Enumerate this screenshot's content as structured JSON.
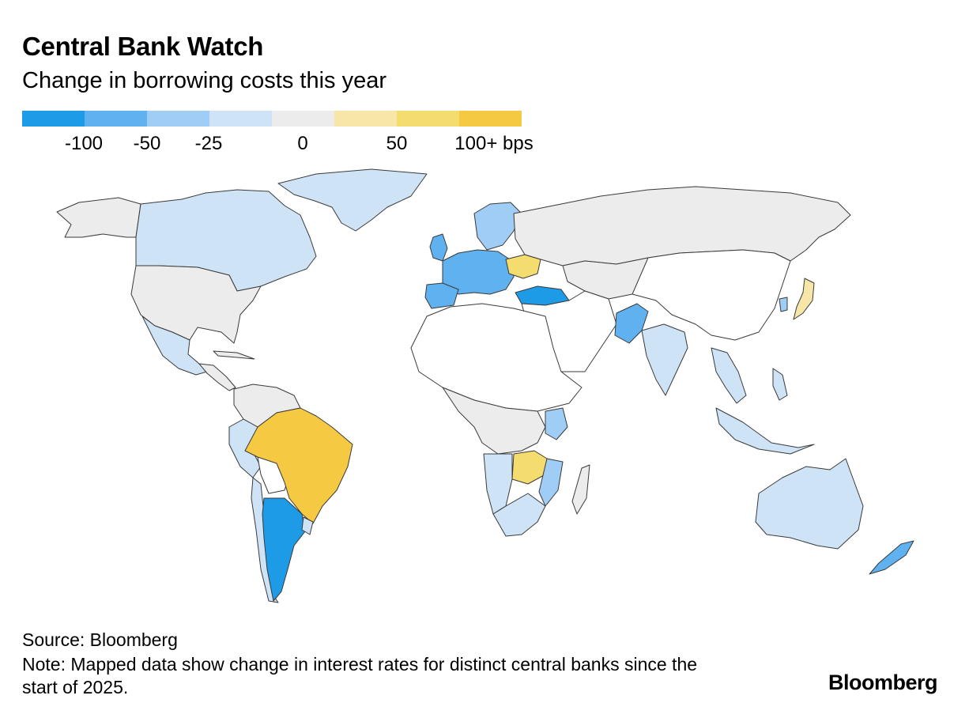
{
  "header": {
    "title": "Central Bank Watch",
    "subtitle": "Change in borrowing costs this year"
  },
  "legend": {
    "segments": [
      "#1e9be6",
      "#60b1ef",
      "#9fcdf5",
      "#cfe3f6",
      "#ececec",
      "#f6e6a8",
      "#f5dc6e",
      "#f6c943"
    ],
    "labels": [
      "-100",
      "-50",
      "-25",
      "0",
      "50",
      "100+ bps"
    ]
  },
  "colors": {
    "neg100": "#1e9be6",
    "neg50": "#60b1ef",
    "neg25": "#9fcdf5",
    "neg_small": "#cfe3f6",
    "zero": "#ececec",
    "pos50": "#f6e6a8",
    "pos75": "#f5dc6e",
    "pos100": "#f6c943",
    "no_data": "#ffffff"
  },
  "footer": {
    "source": "Source: Bloomberg",
    "note": "Note: Mapped data show change in interest rates for distinct central banks since the start of 2025.",
    "brand": "Bloomberg"
  }
}
